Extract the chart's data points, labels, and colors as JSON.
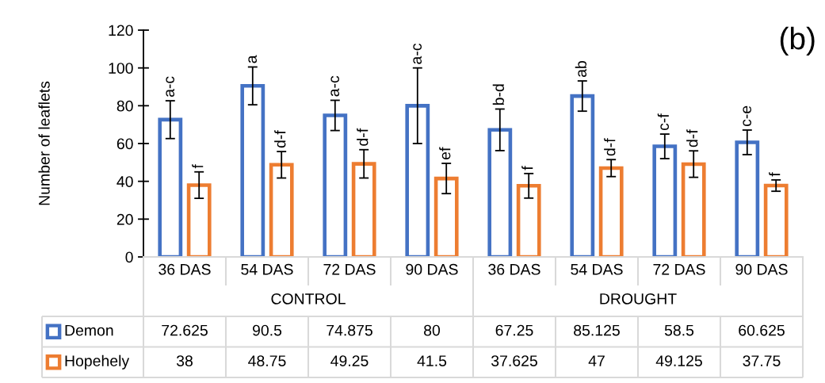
{
  "chart_data": {
    "type": "bar",
    "title": "(b)",
    "ylabel": "Number of leaflets",
    "categories": [
      "36 DAS",
      "54 DAS",
      "72 DAS",
      "90 DAS",
      "36 DAS",
      "54 DAS",
      "72 DAS",
      "90 DAS"
    ],
    "annotations": [
      "a-c",
      "f",
      "a",
      "d-f",
      "a-c",
      "d-f",
      "a-c",
      "ef",
      "b-d",
      "f",
      "ab",
      "d-f",
      "c-f",
      "d-f",
      "c-e",
      "f",
      "CONTROL",
      "DROUGHT"
    ],
    "series": [
      {
        "name": "Demon",
        "color": "#4472c4",
        "values": [
          72.625,
          90.5,
          74.875,
          80,
          67.25,
          85.125,
          58.5,
          60.625
        ],
        "errors": [
          10,
          10,
          8,
          20,
          11,
          8,
          6.5,
          6.5
        ]
      },
      {
        "name": "Hopehely",
        "color": "#ed7d31",
        "values": [
          38,
          48.75,
          49.25,
          41.5,
          37.625,
          47,
          49.125,
          37.75
        ],
        "errors": [
          7,
          7,
          7.5,
          8,
          6.5,
          4.5,
          7,
          3
        ]
      }
    ],
    "ylim": [
      0,
      120
    ],
    "yticks": [
      0,
      20,
      40,
      60,
      80,
      100,
      120
    ],
    "grid": false,
    "legend": "bottom left",
    "data_labels": true
  }
}
